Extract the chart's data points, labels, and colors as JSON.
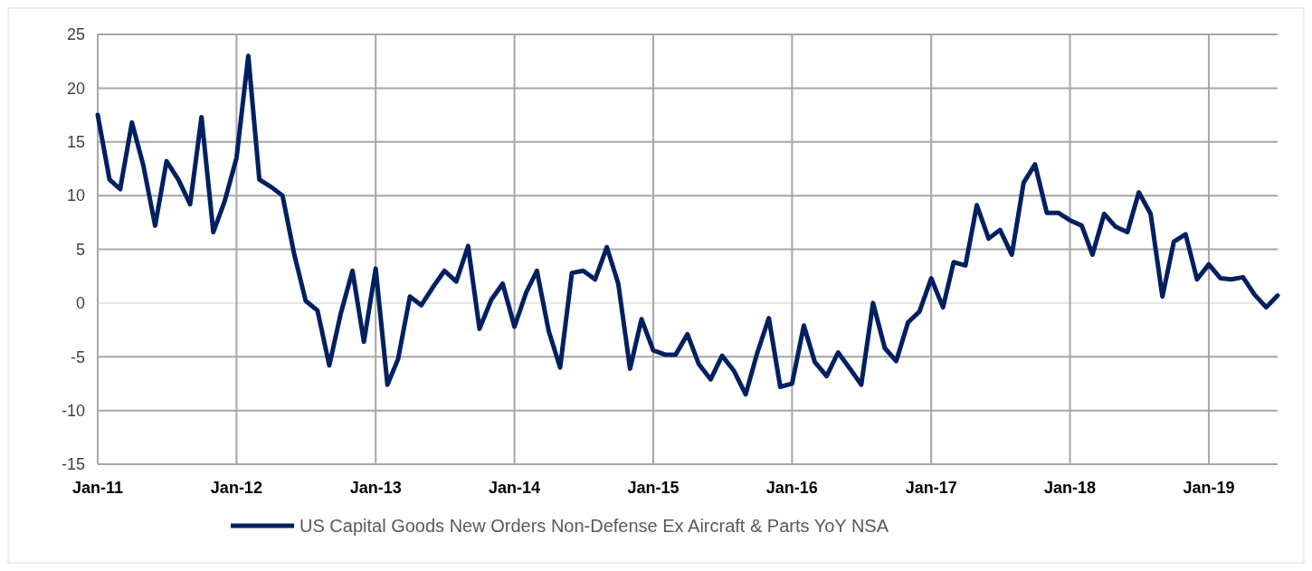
{
  "chart_data": {
    "type": "line",
    "xlim": [
      "2011-01",
      "2019-07"
    ],
    "xticks": [
      {
        "value": "2011-01",
        "label": "Jan-11"
      },
      {
        "value": "2012-01",
        "label": "Jan-12"
      },
      {
        "value": "2013-01",
        "label": "Jan-13"
      },
      {
        "value": "2014-01",
        "label": "Jan-14"
      },
      {
        "value": "2015-01",
        "label": "Jan-15"
      },
      {
        "value": "2016-01",
        "label": "Jan-16"
      },
      {
        "value": "2017-01",
        "label": "Jan-17"
      },
      {
        "value": "2018-01",
        "label": "Jan-18"
      },
      {
        "value": "2019-01",
        "label": "Jan-19"
      }
    ],
    "ylim": [
      -15,
      25
    ],
    "yticks": [
      -15,
      -10,
      -5,
      0,
      5,
      10,
      15,
      20,
      25
    ],
    "grid": true,
    "legend": "bottom",
    "line_style": "solid",
    "x": [
      "2011-01",
      "2011-02",
      "2011-03",
      "2011-04",
      "2011-05",
      "2011-06",
      "2011-07",
      "2011-08",
      "2011-09",
      "2011-10",
      "2011-11",
      "2011-12",
      "2012-01",
      "2012-02",
      "2012-03",
      "2012-04",
      "2012-05",
      "2012-06",
      "2012-07",
      "2012-08",
      "2012-09",
      "2012-10",
      "2012-11",
      "2012-12",
      "2013-01",
      "2013-02",
      "2013-03",
      "2013-04",
      "2013-05",
      "2013-06",
      "2013-07",
      "2013-08",
      "2013-09",
      "2013-10",
      "2013-11",
      "2013-12",
      "2014-01",
      "2014-02",
      "2014-03",
      "2014-04",
      "2014-05",
      "2014-06",
      "2014-07",
      "2014-08",
      "2014-09",
      "2014-10",
      "2014-11",
      "2014-12",
      "2015-01",
      "2015-02",
      "2015-03",
      "2015-04",
      "2015-05",
      "2015-06",
      "2015-07",
      "2015-08",
      "2015-09",
      "2015-10",
      "2015-11",
      "2015-12",
      "2016-01",
      "2016-02",
      "2016-03",
      "2016-04",
      "2016-05",
      "2016-06",
      "2016-07",
      "2016-08",
      "2016-09",
      "2016-10",
      "2016-11",
      "2016-12",
      "2017-01",
      "2017-02",
      "2017-03",
      "2017-04",
      "2017-05",
      "2017-06",
      "2017-07",
      "2017-08",
      "2017-09",
      "2017-10",
      "2017-11",
      "2017-12",
      "2018-01",
      "2018-02",
      "2018-03",
      "2018-04",
      "2018-05",
      "2018-06",
      "2018-07",
      "2018-08",
      "2018-09",
      "2018-10",
      "2018-11",
      "2018-12",
      "2019-01",
      "2019-02",
      "2019-03",
      "2019-04",
      "2019-05",
      "2019-06",
      "2019-07"
    ],
    "series": [
      {
        "name": "US Capital Goods New Orders Non-Defense Ex Aircraft & Parts YoY NSA",
        "color": "#002060",
        "values": [
          17.5,
          11.5,
          10.6,
          16.8,
          12.8,
          7.2,
          13.2,
          11.5,
          9.2,
          17.3,
          6.6,
          9.5,
          13.5,
          23,
          11.5,
          10.8,
          10,
          4.5,
          0.2,
          -0.7,
          -5.8,
          -1,
          3,
          -3.6,
          3.2,
          -7.6,
          -5.2,
          0.6,
          -0.2,
          1.5,
          3,
          2,
          5.3,
          -2.4,
          0.3,
          1.8,
          -2.2,
          1,
          3,
          -2.6,
          -6,
          2.8,
          3,
          2.2,
          5.2,
          1.8,
          -6.1,
          -1.5,
          -4.4,
          -4.8,
          -4.8,
          -2.9,
          -5.7,
          -7.1,
          -4.9,
          -6.3,
          -8.5,
          -4.7,
          -1.4,
          -7.8,
          -7.5,
          -2.1,
          -5.5,
          -6.8,
          -4.6,
          -6.1,
          -7.6,
          0,
          -4.2,
          -5.4,
          -1.8,
          -0.8,
          2.3,
          -0.4,
          3.8,
          3.5,
          9.1,
          6,
          6.8,
          4.5,
          11.2,
          12.9,
          8.4,
          8.4,
          7.7,
          7.2,
          4.5,
          8.3,
          7.1,
          6.6,
          10.3,
          8.3,
          0.6,
          5.7,
          6.4,
          2.2,
          3.6,
          2.3,
          2.2,
          2.4,
          0.8,
          -0.4,
          0.7
        ]
      }
    ]
  }
}
